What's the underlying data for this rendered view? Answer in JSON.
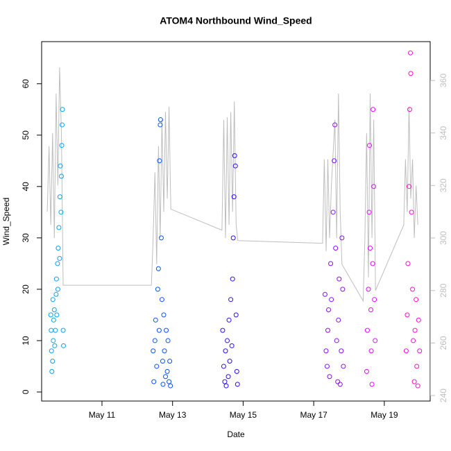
{
  "chart_data": {
    "type": "scatter",
    "title": "ATOM4 Northbound Wind_Speed",
    "x_label": "Date",
    "y_label": "Wind_Speed",
    "xlim": [
      9.29,
      20.3
    ],
    "xticks": [
      {
        "value": 11,
        "label": "May 11"
      },
      {
        "value": 13,
        "label": "May 13"
      },
      {
        "value": 15,
        "label": "May 15"
      },
      {
        "value": 17,
        "label": "May 17"
      },
      {
        "value": 19,
        "label": "May 19"
      }
    ],
    "ylim": [
      -1.76,
      68.2
    ],
    "yticks": [
      0,
      10,
      20,
      30,
      40,
      50,
      60
    ],
    "y2lim": [
      237.9,
      374.8
    ],
    "y2ticks": [
      240,
      260,
      280,
      300,
      320,
      340,
      360
    ],
    "y2_color": "#BEBEBE",
    "series": [
      {
        "color": "#0AA0F0",
        "x": [
          9.55,
          9.56,
          9.57,
          9.58,
          9.6,
          9.61,
          9.62,
          9.63,
          9.65,
          9.66,
          9.68,
          9.7,
          9.71,
          9.72,
          9.74,
          9.75,
          9.76,
          9.78,
          9.8,
          9.81,
          9.82,
          9.84,
          9.85,
          9.86,
          9.87,
          9.88,
          9.9,
          9.91
        ],
        "values": [
          15,
          12,
          8,
          4,
          6,
          18,
          10,
          14,
          16,
          9,
          12,
          19,
          22,
          15,
          25,
          20,
          28,
          32,
          26,
          38,
          44,
          35,
          42,
          48,
          52,
          55,
          12,
          9
        ]
      },
      {
        "color": "#0A50FF",
        "x": [
          12.45,
          12.47,
          12.5,
          12.52,
          12.55,
          12.58,
          12.6,
          12.62,
          12.63,
          12.65,
          12.66,
          12.68,
          12.7,
          12.72,
          12.73,
          12.75,
          12.77,
          12.8,
          12.82,
          12.85,
          12.87,
          12.9,
          12.92,
          12.94
        ],
        "values": [
          8,
          2,
          10,
          14,
          5,
          20,
          24,
          12,
          45,
          52,
          53,
          30,
          18,
          6,
          1.5,
          15,
          8,
          3,
          12,
          4,
          10,
          2,
          6,
          1.2
        ]
      },
      {
        "color": "#2A0AFF",
        "x": [
          14.42,
          14.45,
          14.48,
          14.5,
          14.52,
          14.55,
          14.58,
          14.6,
          14.62,
          14.65,
          14.68,
          14.7,
          14.72,
          14.74,
          14.76,
          14.78,
          14.8,
          14.82,
          14.84
        ],
        "values": [
          12,
          5,
          2,
          8,
          1.2,
          10,
          3,
          14,
          6,
          18,
          9,
          22,
          30,
          38,
          46,
          44,
          15,
          4,
          1.5
        ]
      },
      {
        "color": "#8A0AFF",
        "x": [
          17.32,
          17.35,
          17.38,
          17.4,
          17.42,
          17.45,
          17.48,
          17.5,
          17.55,
          17.58,
          17.6,
          17.62,
          17.65,
          17.68,
          17.7,
          17.72,
          17.75,
          17.78,
          17.8,
          17.82,
          17.84
        ],
        "values": [
          19,
          8,
          5,
          12,
          16,
          3,
          25,
          18,
          35,
          45,
          52,
          28,
          10,
          2,
          14,
          22,
          1.5,
          8,
          30,
          20,
          5
        ]
      },
      {
        "color": "#E00AFF",
        "x": [
          18.5,
          18.52,
          18.55,
          18.57,
          18.58,
          18.6,
          18.62,
          18.63,
          18.65,
          18.67,
          18.68,
          18.7,
          18.72,
          18.74
        ],
        "values": [
          4,
          12,
          20,
          35,
          48,
          28,
          16,
          8,
          1.5,
          25,
          55,
          40,
          18,
          10
        ]
      },
      {
        "color": "#FF0AD0",
        "x": [
          19.62,
          19.65,
          19.67,
          19.7,
          19.72,
          19.74,
          19.75,
          19.77,
          19.8,
          19.82,
          19.85,
          19.87,
          19.9,
          19.92,
          19.95,
          19.97,
          20.0
        ],
        "values": [
          8,
          15,
          25,
          40,
          55,
          66,
          62,
          35,
          20,
          10,
          2,
          12,
          18,
          5,
          1.2,
          14,
          8
        ]
      },
      {
        "color": "#BEBEBE",
        "axis": "y2",
        "type": "line",
        "x": [
          9.45,
          9.5,
          9.55,
          9.6,
          9.65,
          9.7,
          9.75,
          9.8,
          9.85,
          9.9,
          12.4,
          12.45,
          12.5,
          12.55,
          12.6,
          12.65,
          12.7,
          12.75,
          12.8,
          12.85,
          12.9,
          12.95,
          14.4,
          14.45,
          14.5,
          14.55,
          14.6,
          14.65,
          14.7,
          14.75,
          14.8,
          14.85,
          17.25,
          17.3,
          17.35,
          17.4,
          17.45,
          17.5,
          17.6,
          17.65,
          17.7,
          17.75,
          17.8,
          18.4,
          18.45,
          18.5,
          18.55,
          18.6,
          18.65,
          18.7,
          18.75,
          19.55,
          19.6,
          19.65,
          19.7,
          19.75,
          19.8,
          19.85,
          19.9,
          19.95
        ],
        "values": [
          310,
          335,
          305,
          340,
          300,
          355,
          320,
          365,
          340,
          282,
          282,
          300,
          325,
          290,
          335,
          300,
          345,
          310,
          348,
          315,
          350,
          311,
          303,
          345,
          300,
          346,
          305,
          348,
          310,
          352,
          305,
          299,
          298,
          330,
          295,
          330,
          300,
          320,
          345,
          300,
          355,
          310,
          290,
          276,
          300,
          340,
          285,
          355,
          300,
          345,
          280,
          305,
          330,
          310,
          350,
          315,
          330,
          300,
          320,
          305
        ]
      }
    ]
  }
}
